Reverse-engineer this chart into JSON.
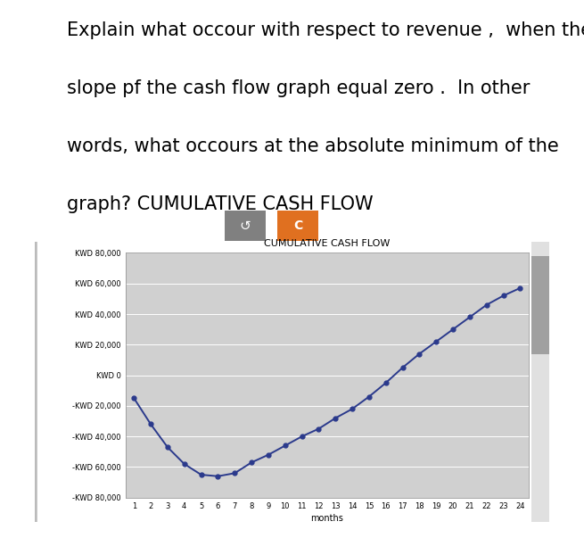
{
  "title": "CUMULATIVE CASH FLOW",
  "xlabel": "months",
  "months": [
    1,
    2,
    3,
    4,
    5,
    6,
    7,
    8,
    9,
    10,
    11,
    12,
    13,
    14,
    15,
    16,
    17,
    18,
    19,
    20,
    21,
    22,
    23,
    24
  ],
  "values": [
    -15000,
    -32000,
    -47000,
    -58000,
    -65000,
    -66000,
    -64000,
    -57000,
    -52000,
    -46000,
    -40000,
    -35000,
    -28000,
    -22000,
    -14000,
    -5000,
    5000,
    14000,
    22000,
    30000,
    38000,
    46000,
    52000,
    57000
  ],
  "line_color": "#2b3a8c",
  "marker_size": 3.5,
  "line_width": 1.4,
  "plot_bg_color": "#d0d0d0",
  "fig_bg_color": "#ffffff",
  "card_bg_color": "#f5f5f5",
  "ylim": [
    -80000,
    80000
  ],
  "yticks": [
    -80000,
    -60000,
    -40000,
    -20000,
    0,
    20000,
    40000,
    60000,
    80000
  ],
  "ytick_labels": [
    "-KWD 80,000",
    "-KWD 60,000",
    "-KWD 40,000",
    "-KWD 20,000",
    "KWD 0",
    "KWD 20,000",
    "KWD 40,000",
    "KWD 60,000",
    "KWD 80,000"
  ],
  "title_fontsize": 8,
  "tick_fontsize": 6,
  "xlabel_fontsize": 7,
  "text_line1": "Explain what occour with respect to revenue ,  when the",
  "text_line2": "slope pf the cash flow graph equal zero .  In other",
  "text_line3": "words, what occours at the absolute minimum of the",
  "text_line4": "graph? CUMULATIVE CASH FLOW",
  "text_fontsize": 15,
  "button1_color": "#808080",
  "button2_color": "#e07020",
  "scrollbar_color": "#c0c0c0"
}
